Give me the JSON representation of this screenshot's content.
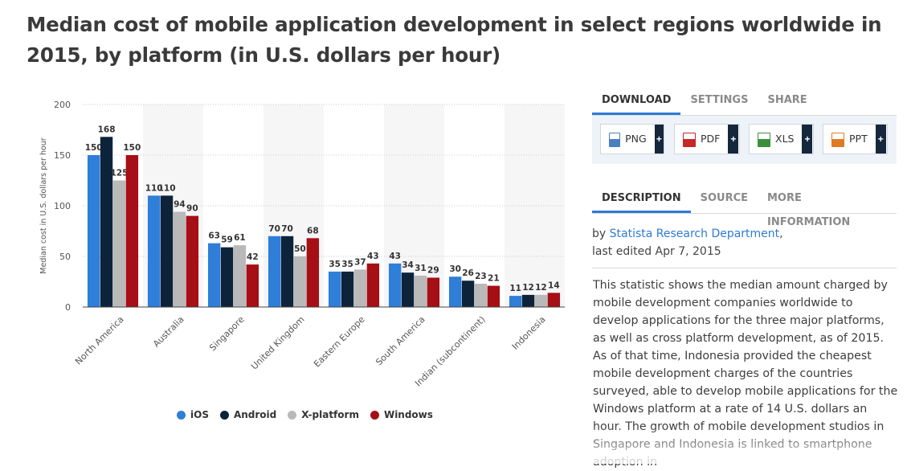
{
  "page": {
    "title": "Median cost of mobile application development in select regions worldwide in 2015, by platform (in U.S. dollars per hour)"
  },
  "download": {
    "tabs": [
      {
        "label": "DOWNLOAD",
        "active": true
      },
      {
        "label": "SETTINGS",
        "active": false
      },
      {
        "label": "SHARE",
        "active": false
      }
    ],
    "buttons": [
      {
        "label": "PNG",
        "plus": "+",
        "color": "#4a7fc1"
      },
      {
        "label": "PDF",
        "plus": "+",
        "color": "#c62828"
      },
      {
        "label": "XLS",
        "plus": "+",
        "color": "#3b8f3b"
      },
      {
        "label": "PPT",
        "plus": "+",
        "color": "#e07b22"
      }
    ]
  },
  "info": {
    "tabs": [
      {
        "label": "DESCRIPTION",
        "active": true
      },
      {
        "label": "SOURCE",
        "active": false
      },
      {
        "label": "MORE INFORMATION",
        "active": false
      }
    ],
    "by_prefix": "by ",
    "author": "Statista Research Department",
    "by_suffix": ",",
    "last_edited": "last edited Apr 7, 2015",
    "description": "This statistic shows the median amount charged by mobile development companies worldwide to develop applications for the three major platforms, as well as cross platform development, as of 2015. As of that time, Indonesia provided the cheapest mobile development charges of the countries surveyed, able to develop mobile applications for the Windows platform at a rate of 14 U.S. dollars an hour. The growth of mobile development studios in Singapore and Indonesia is linked to smartphone adoption in"
  },
  "chart_data": {
    "type": "bar",
    "title": "",
    "xlabel": "",
    "ylabel": "Median cost in U.S. dollars per hour",
    "ylim": [
      0,
      200
    ],
    "yticks": [
      0,
      50,
      100,
      150,
      200
    ],
    "grid": true,
    "legend_position": "bottom",
    "categories": [
      "North America",
      "Australia",
      "Singapore",
      "United Kingdom",
      "Eastern Europe",
      "South America",
      "Indian (subcontinent)",
      "Indonesia"
    ],
    "series": [
      {
        "name": "iOS",
        "color": "#2f7ed8",
        "values": [
          150,
          110,
          63,
          70,
          35,
          43,
          30,
          11
        ]
      },
      {
        "name": "Android",
        "color": "#0d233a",
        "values": [
          168,
          110,
          59,
          70,
          35,
          34,
          26,
          12
        ]
      },
      {
        "name": "X-platform",
        "color": "#b9b9b9",
        "values": [
          125,
          94,
          61,
          50,
          37,
          31,
          23,
          12
        ]
      },
      {
        "name": "Windows",
        "color": "#a50f15",
        "values": [
          150,
          90,
          42,
          68,
          43,
          29,
          21,
          14
        ]
      }
    ]
  }
}
